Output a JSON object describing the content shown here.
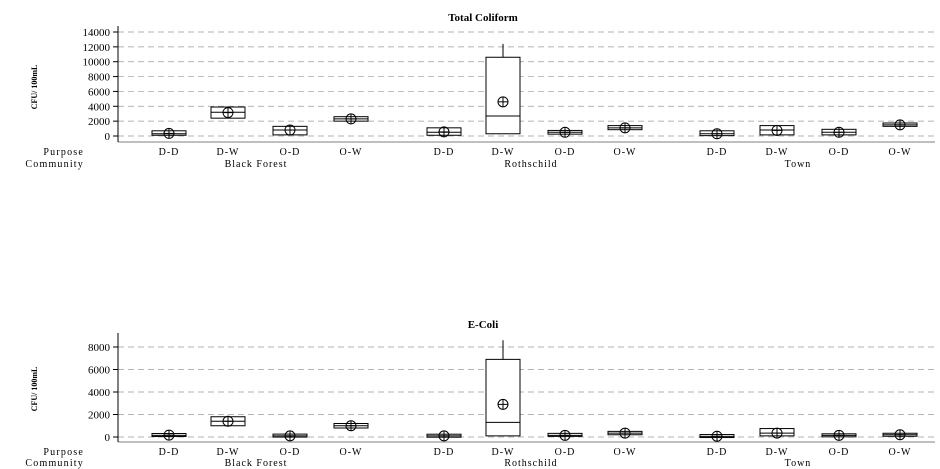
{
  "chart_data": [
    {
      "type": "box",
      "title": "Total Coliform",
      "ylabel": "CFU/ 100mL",
      "ylim": [
        0,
        14000
      ],
      "yticks": [
        0,
        2000,
        4000,
        6000,
        8000,
        10000,
        12000,
        14000
      ],
      "grid": "horizontal dashed",
      "row_labels": {
        "purpose": "Purpose",
        "community": "Community"
      },
      "groups": [
        {
          "community": "Black Forest",
          "boxes": [
            {
              "purpose": "D-D",
              "q1": 100,
              "median": 300,
              "q3": 700,
              "whisker_low": 100,
              "whisker_high": 700,
              "mean": 350
            },
            {
              "purpose": "D-W",
              "q1": 2400,
              "median": 3200,
              "q3": 3900,
              "whisker_low": 2400,
              "whisker_high": 3900,
              "mean": 3150
            },
            {
              "purpose": "O-D",
              "q1": 150,
              "median": 800,
              "q3": 1300,
              "whisker_low": 150,
              "whisker_high": 1300,
              "mean": 800
            },
            {
              "purpose": "O-W",
              "q1": 2000,
              "median": 2300,
              "q3": 2600,
              "whisker_low": 2000,
              "whisker_high": 2600,
              "mean": 2300
            }
          ]
        },
        {
          "community": "Rothschild",
          "boxes": [
            {
              "purpose": "D-D",
              "q1": 100,
              "median": 500,
              "q3": 1100,
              "whisker_low": 100,
              "whisker_high": 1100,
              "mean": 550
            },
            {
              "purpose": "D-W",
              "q1": 300,
              "median": 2700,
              "q3": 10600,
              "whisker_low": 300,
              "whisker_high": 12400,
              "mean": 4600
            },
            {
              "purpose": "O-D",
              "q1": 250,
              "median": 500,
              "q3": 750,
              "whisker_low": 250,
              "whisker_high": 750,
              "mean": 500
            },
            {
              "purpose": "O-W",
              "q1": 850,
              "median": 1100,
              "q3": 1400,
              "whisker_low": 850,
              "whisker_high": 1400,
              "mean": 1100
            }
          ]
        },
        {
          "community": "Town",
          "boxes": [
            {
              "purpose": "D-D",
              "q1": 50,
              "median": 300,
              "q3": 700,
              "whisker_low": 50,
              "whisker_high": 700,
              "mean": 300
            },
            {
              "purpose": "D-W",
              "q1": 150,
              "median": 800,
              "q3": 1400,
              "whisker_low": 150,
              "whisker_high": 1400,
              "mean": 750
            },
            {
              "purpose": "O-D",
              "q1": 150,
              "median": 500,
              "q3": 900,
              "whisker_low": 150,
              "whisker_high": 900,
              "mean": 500
            },
            {
              "purpose": "O-W",
              "q1": 1300,
              "median": 1500,
              "q3": 1750,
              "whisker_low": 1300,
              "whisker_high": 1750,
              "mean": 1500
            }
          ]
        }
      ]
    },
    {
      "type": "box",
      "title": "E-Coli",
      "ylabel": "CFU/ 100mL",
      "ylim": [
        0,
        8000
      ],
      "yticks": [
        0,
        2000,
        4000,
        6000,
        8000
      ],
      "grid": "horizontal dashed",
      "row_labels": {
        "purpose": "Purpose",
        "community": "Community"
      },
      "groups": [
        {
          "community": "Black Forest",
          "boxes": [
            {
              "purpose": "D-D",
              "q1": 50,
              "median": 150,
              "q3": 300,
              "whisker_low": 50,
              "whisker_high": 300,
              "mean": 170
            },
            {
              "purpose": "D-W",
              "q1": 1000,
              "median": 1400,
              "q3": 1800,
              "whisker_low": 1000,
              "whisker_high": 1800,
              "mean": 1400
            },
            {
              "purpose": "O-D",
              "q1": 50,
              "median": 100,
              "q3": 200,
              "whisker_low": 50,
              "whisker_high": 200,
              "mean": 100
            },
            {
              "purpose": "O-W",
              "q1": 800,
              "median": 1000,
              "q3": 1200,
              "whisker_low": 800,
              "whisker_high": 1200,
              "mean": 1000
            }
          ]
        },
        {
          "community": "Rothschild",
          "boxes": [
            {
              "purpose": "D-D",
              "q1": 30,
              "median": 100,
              "q3": 200,
              "whisker_low": 30,
              "whisker_high": 200,
              "mean": 100
            },
            {
              "purpose": "D-W",
              "q1": 100,
              "median": 1300,
              "q3": 6900,
              "whisker_low": 100,
              "whisker_high": 8600,
              "mean": 2900
            },
            {
              "purpose": "O-D",
              "q1": 80,
              "median": 150,
              "q3": 300,
              "whisker_low": 80,
              "whisker_high": 300,
              "mean": 150
            },
            {
              "purpose": "O-W",
              "q1": 200,
              "median": 350,
              "q3": 500,
              "whisker_low": 200,
              "whisker_high": 500,
              "mean": 350
            }
          ]
        },
        {
          "community": "Town",
          "boxes": [
            {
              "purpose": "D-D",
              "q1": 20,
              "median": 60,
              "q3": 150,
              "whisker_low": 20,
              "whisker_high": 150,
              "mean": 70
            },
            {
              "purpose": "D-W",
              "q1": 100,
              "median": 350,
              "q3": 750,
              "whisker_low": 100,
              "whisker_high": 750,
              "mean": 350
            },
            {
              "purpose": "O-D",
              "q1": 50,
              "median": 150,
              "q3": 250,
              "whisker_low": 50,
              "whisker_high": 250,
              "mean": 150
            },
            {
              "purpose": "O-W",
              "q1": 150,
              "median": 200,
              "q3": 250,
              "whisker_low": 150,
              "whisker_high": 250,
              "mean": 200
            }
          ]
        }
      ]
    }
  ]
}
